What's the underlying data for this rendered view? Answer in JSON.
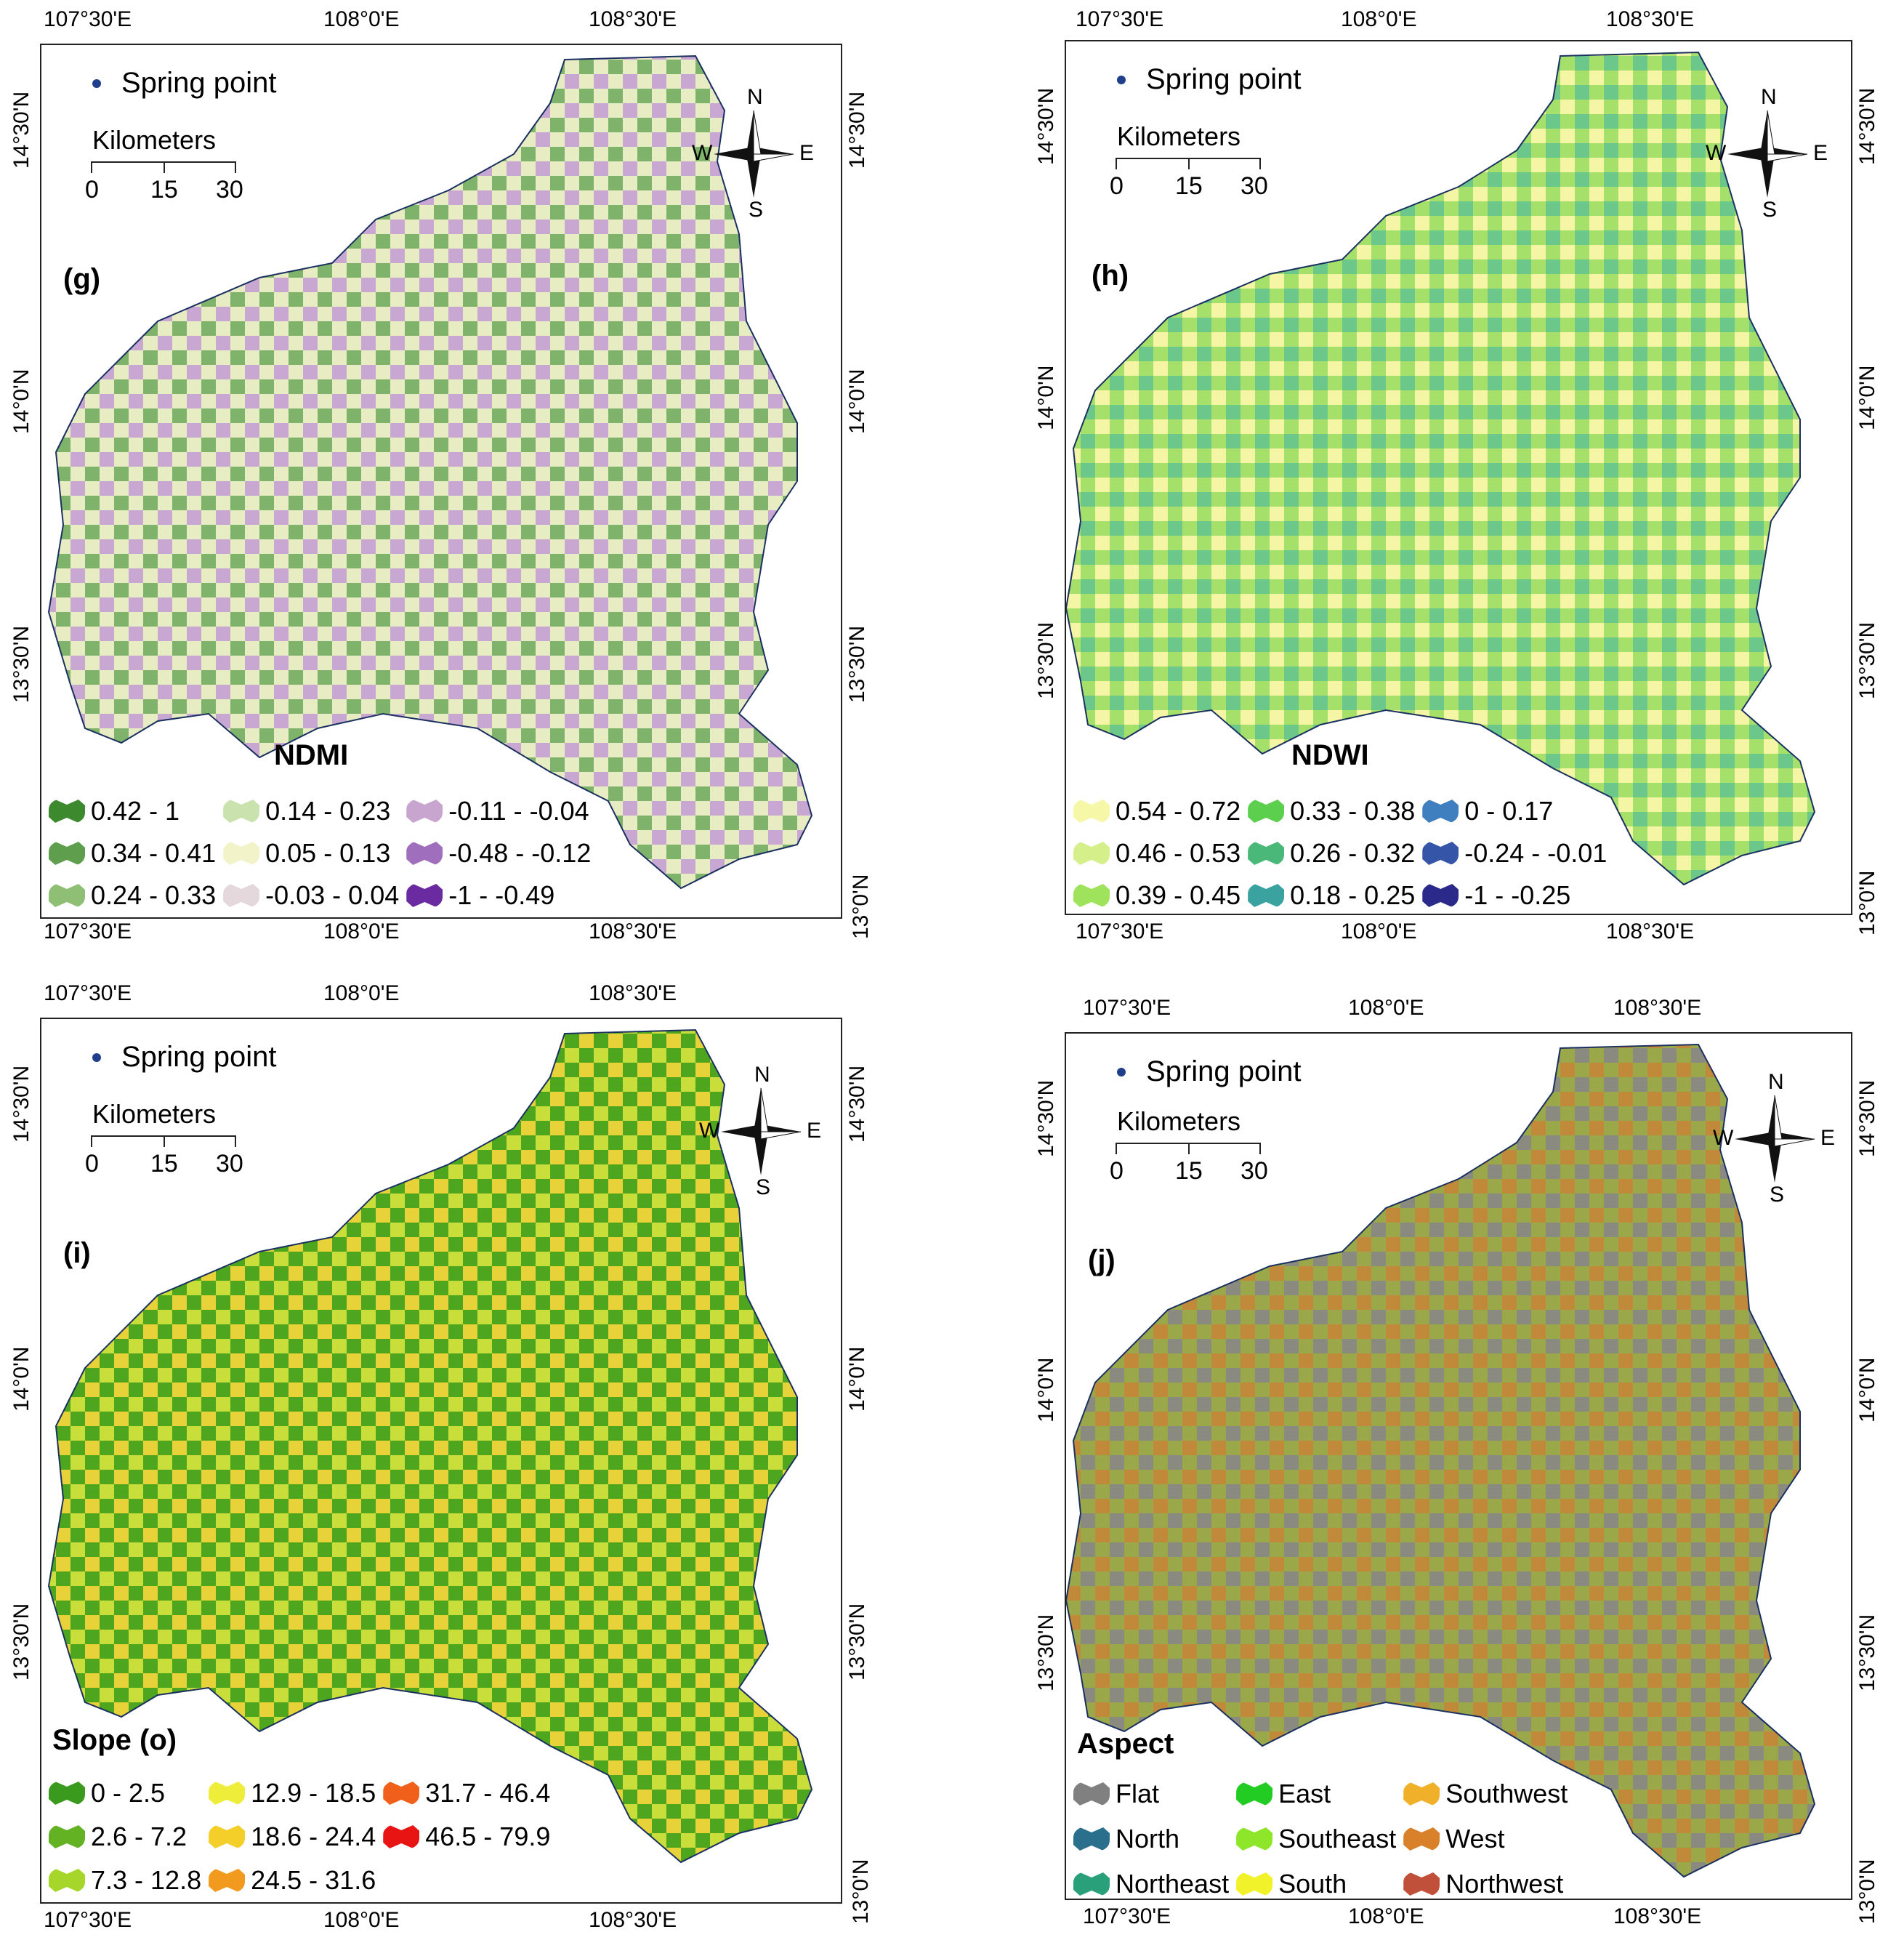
{
  "common": {
    "spring_point_label": "Spring point",
    "scale_title": "Kilometers",
    "scale_ticks": [
      "0",
      "15",
      "30"
    ],
    "north_arrow": {
      "n": "N",
      "s": "S",
      "e": "E",
      "w": "W"
    },
    "lon_labels": [
      "107°30'E",
      "108°0'E",
      "108°30'E"
    ],
    "lat_labels": [
      "14°30'N",
      "14°0'N",
      "13°30'N",
      "13°0'N"
    ],
    "spring_color": "#1f3f8c"
  },
  "panels": [
    {
      "id": "g",
      "label": "(g)",
      "legend_title": "NDMI",
      "legend_items": [
        {
          "label": "0.42 - 1",
          "color": "#3d8a2e"
        },
        {
          "label": "0.34 - 0.41",
          "color": "#5e9e4c"
        },
        {
          "label": "0.24 - 0.33",
          "color": "#8fbf74"
        },
        {
          "label": "0.14 - 0.23",
          "color": "#c9e2ae"
        },
        {
          "label": "0.05 - 0.13",
          "color": "#f2f3c8"
        },
        {
          "label": "-0.03 - 0.04",
          "color": "#e4d8dc"
        },
        {
          "label": "-0.11 - -0.04",
          "color": "#c7a5cf"
        },
        {
          "label": "-0.48 - -0.12",
          "color": "#9f6fbd"
        },
        {
          "label": "-1 - -0.49",
          "color": "#6a2aa0"
        }
      ],
      "base_colors": [
        "#c9a7d3",
        "#7fb26a",
        "#e8ecc3"
      ]
    },
    {
      "id": "h",
      "label": "(h)",
      "legend_title": "NDWI",
      "legend_items": [
        {
          "label": "0.54 - 0.72",
          "color": "#f7f7a8"
        },
        {
          "label": "0.46 - 0.53",
          "color": "#d5f08a"
        },
        {
          "label": "0.39 - 0.45",
          "color": "#9ee35b"
        },
        {
          "label": "0.33 - 0.38",
          "color": "#5ccf4f"
        },
        {
          "label": "0.26 - 0.32",
          "color": "#49b878"
        },
        {
          "label": "0.18 - 0.25",
          "color": "#3aa3a0"
        },
        {
          "label": "0 - 0.17",
          "color": "#3f7fbf"
        },
        {
          "label": "-0.24 - -0.01",
          "color": "#3555a8"
        },
        {
          "label": "-1 - -0.25",
          "color": "#2b2a8a"
        }
      ],
      "base_colors": [
        "#a4e06a",
        "#f5f5a6",
        "#6cc78a"
      ]
    },
    {
      "id": "i",
      "label": "(i)",
      "legend_title": "Slope (o)",
      "legend_items": [
        {
          "label": "0 - 2.5",
          "color": "#3a9a1e"
        },
        {
          "label": "2.6 - 7.2",
          "color": "#62b224"
        },
        {
          "label": "7.3 - 12.8",
          "color": "#a6d62a"
        },
        {
          "label": "12.9 - 18.5",
          "color": "#eeee3a"
        },
        {
          "label": "18.6 - 24.4",
          "color": "#f4cf2a"
        },
        {
          "label": "24.5 - 31.6",
          "color": "#f29a1e"
        },
        {
          "label": "31.7 - 46.4",
          "color": "#f0601a"
        },
        {
          "label": "46.5 - 79.9",
          "color": "#e81414"
        }
      ],
      "base_colors": [
        "#4ea61e",
        "#c9de3a",
        "#e8d23a"
      ]
    },
    {
      "id": "j",
      "label": "(j)",
      "legend_title": "Aspect",
      "legend_items": [
        {
          "label": "Flat",
          "color": "#808080"
        },
        {
          "label": "North",
          "color": "#2a6f8c"
        },
        {
          "label": "Northeast",
          "color": "#2aa07a"
        },
        {
          "label": "East",
          "color": "#22cc22"
        },
        {
          "label": "Southeast",
          "color": "#8ee62a"
        },
        {
          "label": "South",
          "color": "#f2f22a"
        },
        {
          "label": "Southwest",
          "color": "#f0b02a"
        },
        {
          "label": "West",
          "color": "#d9802a"
        },
        {
          "label": "Northwest",
          "color": "#c0503a"
        }
      ],
      "base_colors": [
        "#9aa84a",
        "#c08a3a",
        "#8a8a80"
      ]
    }
  ]
}
